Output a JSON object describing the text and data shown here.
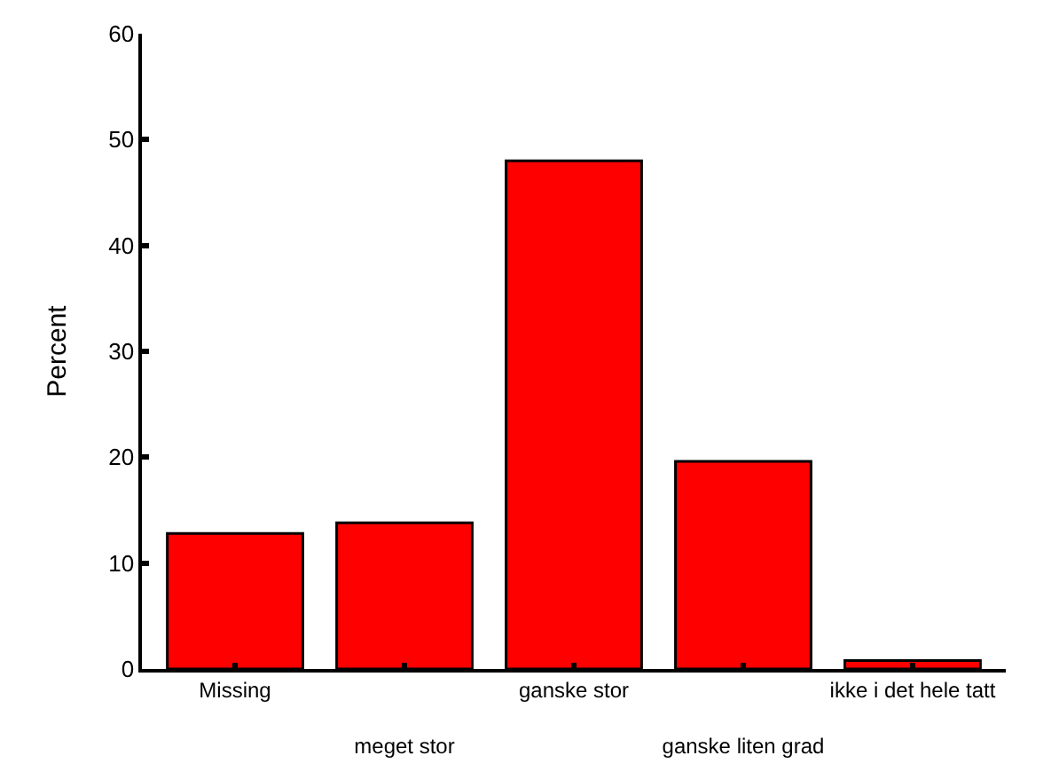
{
  "chart_data": {
    "type": "bar",
    "ylabel": "Percent",
    "categories": [
      "Missing",
      "meget stor",
      "ganske stor",
      "ganske liten grad",
      "ikke i det hele tatt"
    ],
    "values": [
      12.8,
      13.8,
      48.0,
      19.6,
      0.8
    ],
    "color": "#ff0000",
    "ylim": [
      0,
      60
    ],
    "yticks": [
      0,
      10,
      20,
      30,
      40,
      50,
      60
    ],
    "legend": false
  }
}
